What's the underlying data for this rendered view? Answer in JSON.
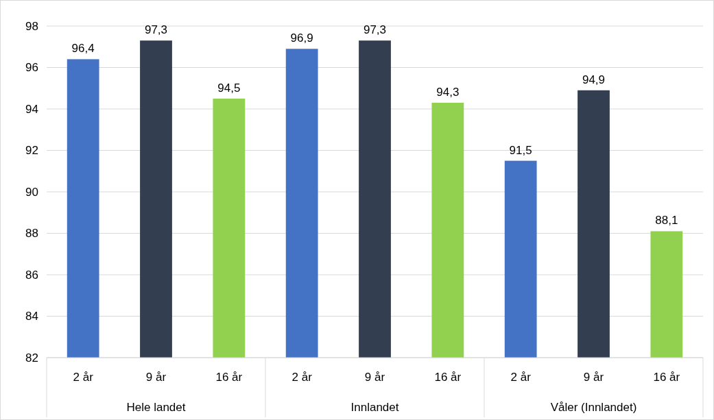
{
  "chart_data": {
    "type": "bar",
    "categories": [
      "Hele landet",
      "Innlandet",
      "Våler (Innlandet)"
    ],
    "series": [
      {
        "name": "2 år",
        "color": "#4472c4",
        "values": [
          96.4,
          96.9,
          91.5
        ],
        "value_labels": [
          "96,4",
          "96,9",
          "91,5"
        ]
      },
      {
        "name": "9 år",
        "color": "#333f50",
        "values": [
          97.3,
          97.3,
          94.9
        ],
        "value_labels": [
          "97,3",
          "97,3",
          "94,9"
        ]
      },
      {
        "name": "16 år",
        "color": "#92d050",
        "values": [
          94.5,
          94.3,
          88.1
        ],
        "value_labels": [
          "94,5",
          "94,3",
          "88,1"
        ]
      }
    ],
    "ylim": [
      82,
      98
    ],
    "yticks": [
      82,
      84,
      86,
      88,
      90,
      92,
      94,
      96,
      98
    ],
    "grid": "y"
  }
}
